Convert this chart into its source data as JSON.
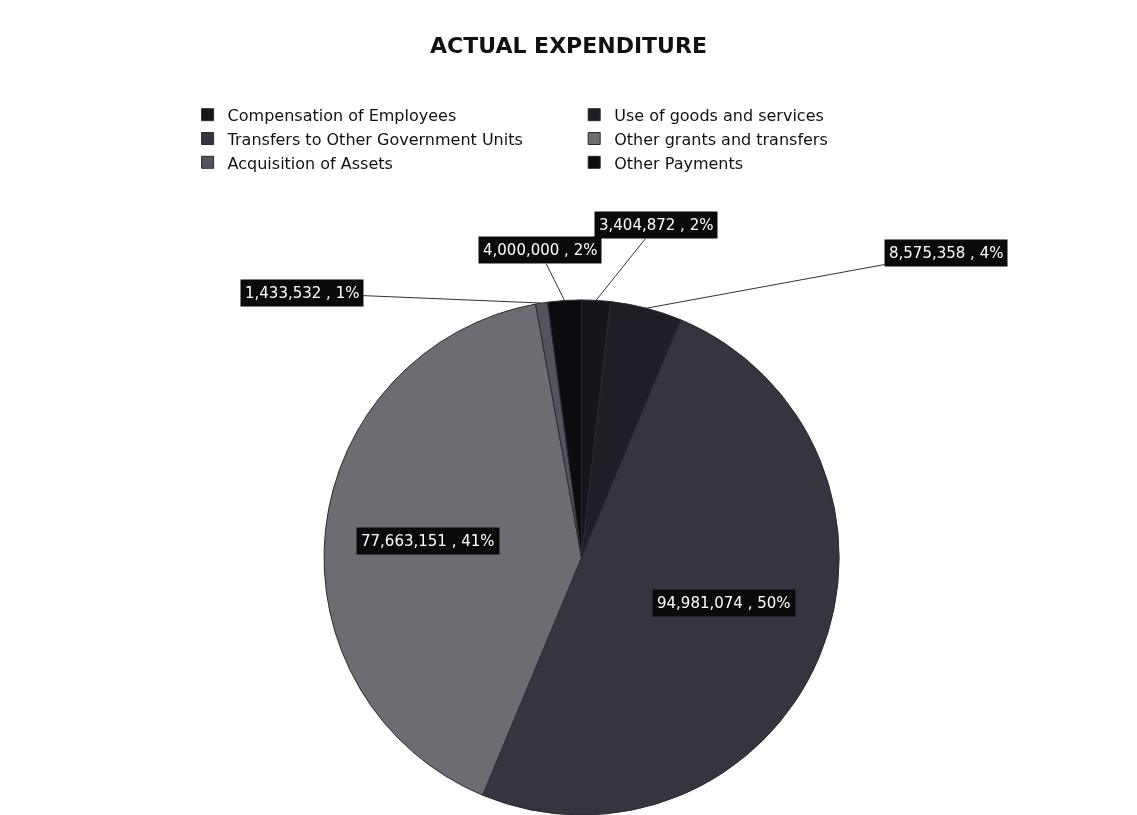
{
  "chart_data": {
    "type": "pie",
    "title": "ACTUAL EXPENDITURE",
    "categories": [
      "Compensation of Employees",
      "Use of goods and services",
      "Transfers to Other Government Units",
      "Other grants and transfers",
      "Acquisition of Assets",
      "Other Payments"
    ],
    "values": [
      3404872,
      8575358,
      94981074,
      77663151,
      1433532,
      4000000
    ],
    "colors": [
      "#15151c",
      "#1e1e27",
      "#36353f",
      "#6d6c73",
      "#55545e",
      "#0c0c10"
    ],
    "value_labels": [
      "3,404,872 , 2%",
      "8,575,358 , 4%",
      "94,981,074 , 50%",
      "77,663,151 , 41%",
      "1,433,532 , 1%",
      "4,000,000 , 2%"
    ],
    "legend": "top"
  }
}
